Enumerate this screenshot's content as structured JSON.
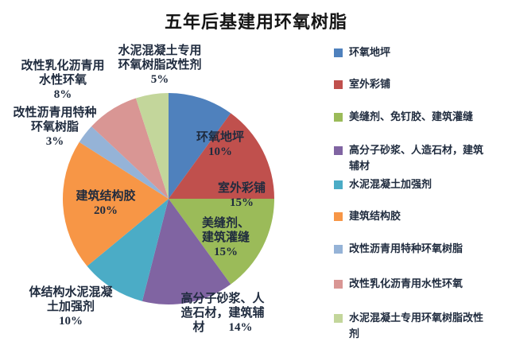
{
  "title": "五年后基建用环氧树脂",
  "chart_data": {
    "type": "pie",
    "title": "五年后基建用环氧树脂",
    "start": "top",
    "direction": "clockwise",
    "legend_position": "right",
    "slices": [
      {
        "label": "环氧地坪",
        "value": 10,
        "color": "#4F81BD"
      },
      {
        "label": "室外彩铺",
        "value": 15,
        "color": "#C0504D"
      },
      {
        "label": "美缝剂、免钉胶、建筑灌缝",
        "value": 15,
        "color": "#9BBB59"
      },
      {
        "label": "高分子砂浆、人造石材，建筑辅材",
        "value": 14,
        "color": "#8064A2"
      },
      {
        "label": "水泥混凝土加强剂",
        "value": 10,
        "color": "#4BACC6"
      },
      {
        "label": "建筑结构胶",
        "value": 20,
        "color": "#F79646"
      },
      {
        "label": "改性沥青用特种环氧树脂",
        "value": 3,
        "color": "#95B3D7"
      },
      {
        "label": "改性乳化沥青用水性环氧",
        "value": 8,
        "color": "#D99694"
      },
      {
        "label": "水泥混凝土专用环氧树脂改性剂",
        "value": 5,
        "color": "#C3D69B"
      }
    ]
  },
  "pie_labels": {
    "inside": [
      {
        "id": "epoxy-floor",
        "text": "环氧地坪\n10%"
      },
      {
        "id": "outdoor-paving",
        "text": "室外彩铺\n15%"
      },
      {
        "id": "sealant-grouting",
        "text": "美缝剂、\n建筑灌缝\n15%"
      },
      {
        "id": "structural-adhesive",
        "text": "建筑结构胶\n20%"
      }
    ],
    "outside": [
      {
        "id": "concrete-modifier",
        "text": "水泥混凝土专用\n环氧树脂改性剂\n5%"
      },
      {
        "id": "waterborne-epoxy",
        "text": "改性乳化沥青用\n水性环氧\n8%"
      },
      {
        "id": "special-epoxy",
        "text": "改性沥青用特种\n环氧树脂\n3%"
      },
      {
        "id": "concrete-strength",
        "text": "体结构水泥混凝\n土加强剂\n10%"
      },
      {
        "id": "polymer-mortar",
        "text": "高分子砂浆、人\n造石材，建筑辅\n材　　14%"
      }
    ]
  },
  "legend": {
    "items": [
      {
        "label": "环氧地坪",
        "color": "#4F81BD"
      },
      {
        "label": "室外彩铺",
        "color": "#C0504D"
      },
      {
        "label": "美缝剂、免钉胶、建筑灌缝",
        "color": "#9BBB59"
      },
      {
        "label": "高分子砂浆、人造石材，建筑辅材",
        "color": "#8064A2"
      },
      {
        "label": "水泥混凝土加强剂",
        "color": "#4BACC6"
      },
      {
        "label": "建筑结构胶",
        "color": "#F79646"
      },
      {
        "label": "改性沥青用特种环氧树脂",
        "color": "#95B3D7"
      },
      {
        "label": "改性乳化沥青用水性环氧",
        "color": "#D99694"
      },
      {
        "label": "水泥混凝土专用环氧树脂改性剂",
        "color": "#C3D69B"
      }
    ]
  }
}
